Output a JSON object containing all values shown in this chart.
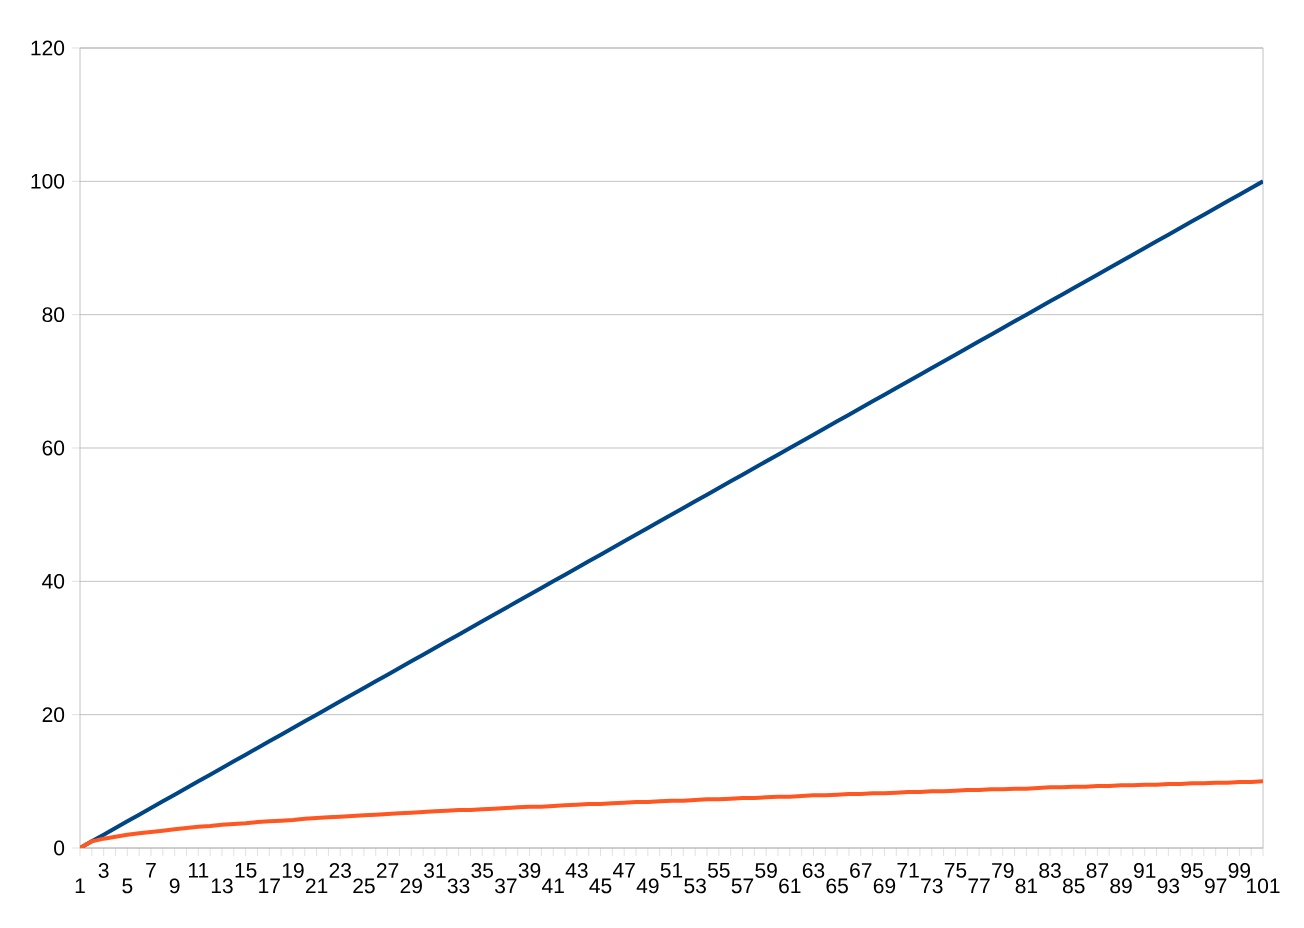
{
  "chart_data": {
    "type": "line",
    "categories": [
      "1",
      null,
      "3",
      null,
      "5",
      null,
      "7",
      null,
      "9",
      null,
      "11",
      null,
      "13",
      null,
      "15",
      null,
      "17",
      null,
      "19",
      null,
      "21",
      null,
      "23",
      null,
      "25",
      null,
      "27",
      null,
      "29",
      null,
      "31",
      null,
      "33",
      null,
      "35",
      null,
      "37",
      null,
      "39",
      null,
      "41",
      null,
      "43",
      null,
      "45",
      null,
      "47",
      null,
      "49",
      null,
      "51",
      null,
      "53",
      null,
      "55",
      null,
      "57",
      null,
      "59",
      null,
      "61",
      null,
      "63",
      null,
      "65",
      null,
      "67",
      null,
      "69",
      null,
      "71",
      null,
      "73",
      null,
      "75",
      null,
      "77",
      null,
      "79",
      null,
      "81",
      null,
      "83",
      null,
      "85",
      null,
      "87",
      null,
      "89",
      null,
      "91",
      null,
      "93",
      null,
      "95",
      null,
      "97",
      null,
      "99",
      null,
      "101"
    ],
    "series": [
      {
        "color": "#004586",
        "values": [
          0,
          1,
          2,
          3,
          4,
          5,
          6,
          7,
          8,
          9,
          10,
          11,
          12,
          13,
          14,
          15,
          16,
          17,
          18,
          19,
          20,
          21,
          22,
          23,
          24,
          25,
          26,
          27,
          28,
          29,
          30,
          31,
          32,
          33,
          34,
          35,
          36,
          37,
          38,
          39,
          40,
          41,
          42,
          43,
          44,
          45,
          46,
          47,
          48,
          49,
          50,
          51,
          52,
          53,
          54,
          55,
          56,
          57,
          58,
          59,
          60,
          61,
          62,
          63,
          64,
          65,
          66,
          67,
          68,
          69,
          70,
          71,
          72,
          73,
          74,
          75,
          76,
          77,
          78,
          79,
          80,
          81,
          82,
          83,
          84,
          85,
          86,
          87,
          88,
          89,
          90,
          91,
          92,
          93,
          94,
          95,
          96,
          97,
          98,
          99,
          100
        ]
      },
      {
        "color": "#ff5722",
        "values": [
          0,
          1,
          1.4,
          1.7,
          2,
          2.2,
          2.4,
          2.6,
          2.8,
          3,
          3.2,
          3.3,
          3.5,
          3.6,
          3.7,
          3.9,
          4,
          4.1,
          4.2,
          4.4,
          4.5,
          4.6,
          4.7,
          4.8,
          4.9,
          5,
          5.1,
          5.2,
          5.3,
          5.4,
          5.5,
          5.6,
          5.7,
          5.7,
          5.8,
          5.9,
          6,
          6.1,
          6.2,
          6.2,
          6.3,
          6.4,
          6.5,
          6.6,
          6.6,
          6.7,
          6.8,
          6.9,
          6.9,
          7,
          7.1,
          7.1,
          7.2,
          7.3,
          7.3,
          7.4,
          7.5,
          7.5,
          7.6,
          7.7,
          7.7,
          7.8,
          7.9,
          7.9,
          8,
          8.1,
          8.1,
          8.2,
          8.2,
          8.3,
          8.4,
          8.4,
          8.5,
          8.5,
          8.6,
          8.7,
          8.7,
          8.8,
          8.8,
          8.9,
          8.9,
          9,
          9.1,
          9.1,
          9.2,
          9.2,
          9.3,
          9.3,
          9.4,
          9.4,
          9.5,
          9.5,
          9.6,
          9.6,
          9.7,
          9.7,
          9.8,
          9.8,
          9.9,
          9.9,
          10
        ]
      }
    ],
    "ylim": [
      0,
      120
    ],
    "yticks": [
      0,
      20,
      40,
      60,
      80,
      100,
      120
    ],
    "grid": "y"
  }
}
